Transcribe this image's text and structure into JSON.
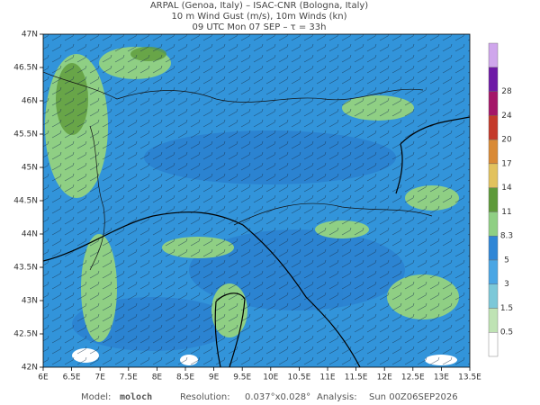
{
  "header": {
    "lines": [
      "ARPAL (Genoa, Italy)  –  ISAC-CNR (Bologna, Italy)",
      "10 m Wind Gust (m/s), 10m Winds (kn)",
      "09 UTC Mon 07 SEP  –  τ = 33h"
    ]
  },
  "map": {
    "lon_labels": [
      "6E",
      "6.5E",
      "7E",
      "7.5E",
      "8E",
      "8.5E",
      "9E",
      "9.5E",
      "10E",
      "10.5E",
      "11E",
      "11.5E",
      "12E",
      "12.5E",
      "13E",
      "13.5E"
    ],
    "lat_labels": [
      "47N",
      "46.5N",
      "46N",
      "45.5N",
      "45N",
      "44.5N",
      "44N",
      "43.5N",
      "43N",
      "42.5N",
      "42N"
    ]
  },
  "colorbar": {
    "labels": [
      "0.5",
      "1.5",
      "3",
      "5",
      "8.3",
      "11",
      "14",
      "17",
      "20",
      "24",
      "28"
    ],
    "colors": [
      "#ffffff",
      "#bfe3b4",
      "#7cc8d8",
      "#4aa6e4",
      "#2f86d6",
      "#8fcf84",
      "#5e9a3a",
      "#e2c25e",
      "#d98a36",
      "#c43a2a",
      "#a41668",
      "#6e1aa6",
      "#cfa6ec"
    ]
  },
  "footer": {
    "model_label": "Model:",
    "model": "moloch",
    "resolution_label": "Resolution:",
    "resolution": "0.037°x0.028°",
    "analysis_label": "Analysis:",
    "analysis": "Sun 00Z06SEP2026"
  }
}
